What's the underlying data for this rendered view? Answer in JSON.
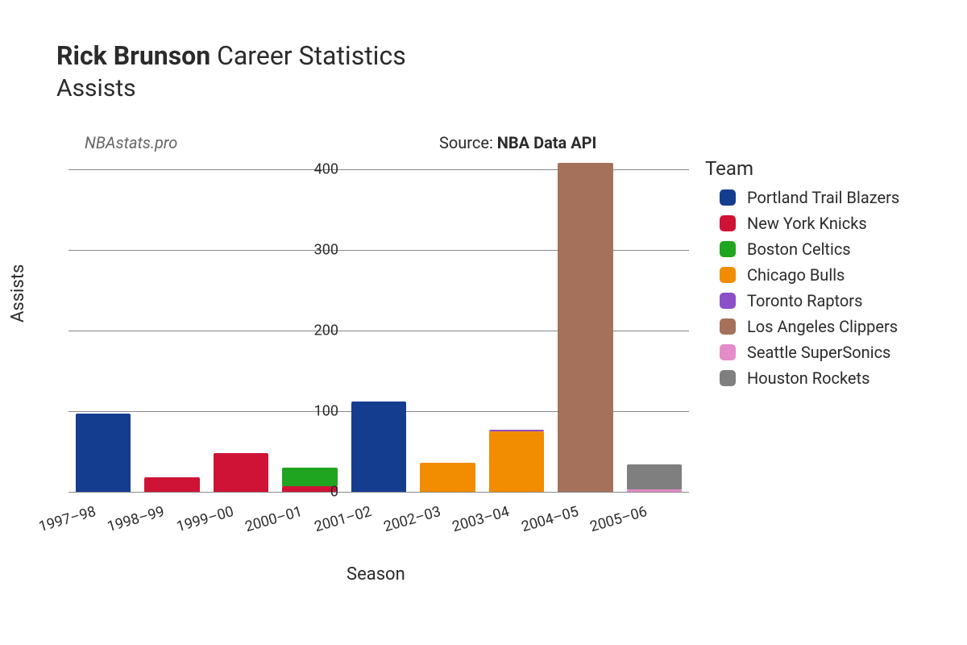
{
  "title": {
    "player": "Rick Brunson",
    "suffix": "Career Statistics",
    "metric": "Assists"
  },
  "watermark": "NBAstats.pro",
  "source": {
    "prefix": "Source: ",
    "name": "NBA Data API"
  },
  "chart": {
    "type": "stacked-bar",
    "background_color": "#ffffff",
    "grid_color": "#888888",
    "text_color": "#2b2b2b",
    "title_fontsize": 32,
    "label_fontsize": 20,
    "tick_fontsize": 18,
    "xlabel": "Season",
    "ylabel": "Assists",
    "ylim": [
      0,
      420
    ],
    "ytick_step": 100,
    "yticks": [
      0,
      100,
      200,
      300,
      400
    ],
    "categories": [
      "1997–98",
      "1998–99",
      "1999–00",
      "2000–01",
      "2001–02",
      "2002–03",
      "2003–04",
      "2004–05",
      "2005–06"
    ],
    "bar_width": 0.8,
    "xtick_rotation_deg": -16,
    "series": [
      {
        "team": "Portland Trail Blazers",
        "color": "#143d8f",
        "values": [
          97,
          0,
          0,
          0,
          112,
          0,
          0,
          0,
          0
        ]
      },
      {
        "team": "New York Knicks",
        "color": "#cf1336",
        "values": [
          0,
          18,
          48,
          7,
          0,
          0,
          0,
          0,
          0
        ]
      },
      {
        "team": "Boston Celtics",
        "color": "#1fa51f",
        "values": [
          0,
          0,
          0,
          23,
          0,
          0,
          0,
          0,
          0
        ]
      },
      {
        "team": "Chicago Bulls",
        "color": "#f28c00",
        "values": [
          0,
          0,
          0,
          0,
          0,
          36,
          75,
          0,
          0
        ]
      },
      {
        "team": "Toronto Raptors",
        "color": "#8b4fc9",
        "values": [
          0,
          0,
          0,
          0,
          0,
          0,
          2,
          0,
          0
        ]
      },
      {
        "team": "Los Angeles Clippers",
        "color": "#a5715b",
        "values": [
          0,
          0,
          0,
          0,
          0,
          0,
          0,
          408,
          0
        ]
      },
      {
        "team": "Seattle SuperSonics",
        "color": "#e58bc8",
        "values": [
          0,
          0,
          0,
          0,
          0,
          0,
          0,
          0,
          3
        ]
      },
      {
        "team": "Houston Rockets",
        "color": "#7f7f7f",
        "values": [
          0,
          0,
          0,
          0,
          0,
          0,
          0,
          0,
          31
        ]
      }
    ]
  },
  "legend": {
    "title": "Team"
  }
}
